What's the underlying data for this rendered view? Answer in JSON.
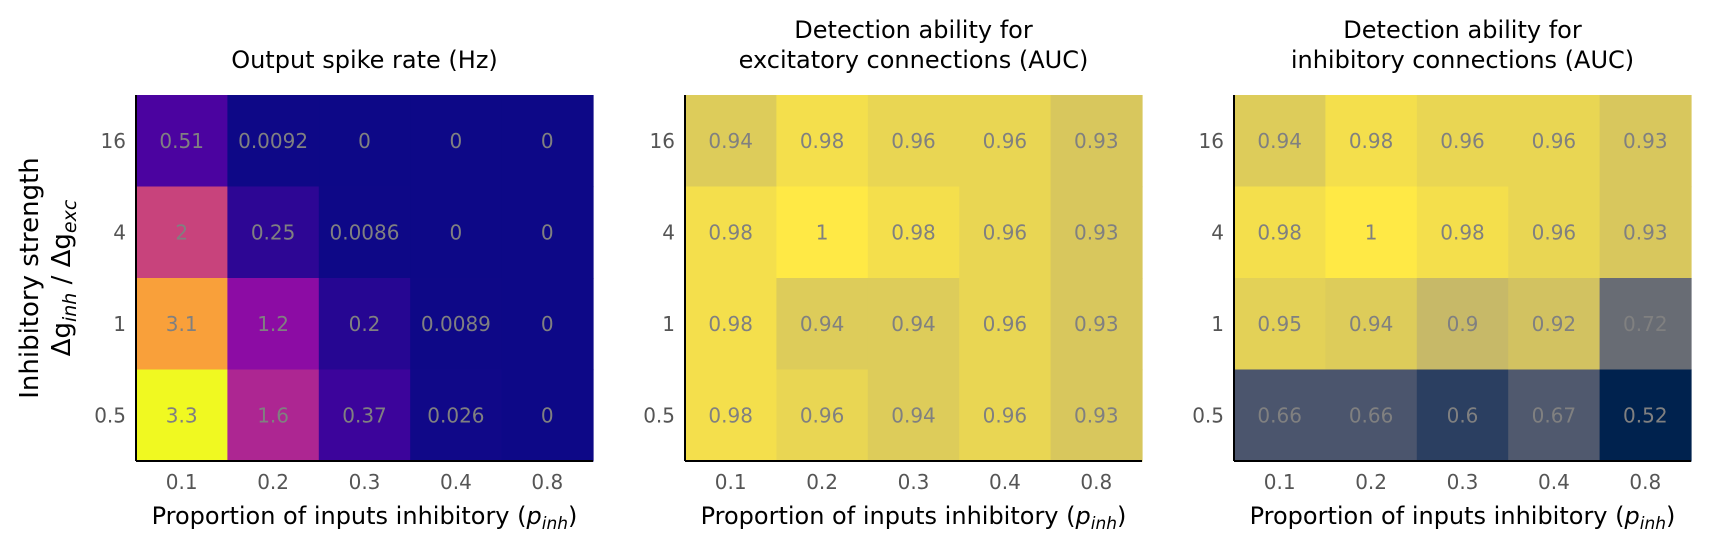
{
  "figure": {
    "ylabel_line1": "Inhibitory strength",
    "ylabel_line2_base": "Δg",
    "ylabel_line2_sub1": "inh",
    "ylabel_line2_mid": " / Δg",
    "ylabel_line2_sub2": "exc",
    "xlabel_main": "Proportion of inputs inhibitory (",
    "xlabel_var": "p",
    "xlabel_sub": "inh",
    "xlabel_close": ")"
  },
  "chart_data": [
    {
      "type": "heatmap",
      "title_lines": [
        "Output spike rate (Hz)"
      ],
      "x_categories": [
        "0.1",
        "0.2",
        "0.3",
        "0.4",
        "0.8"
      ],
      "y_categories": [
        "16",
        "4",
        "1",
        "0.5"
      ],
      "colormap": "plasma",
      "vmin": 0,
      "vmax": 3.3,
      "values": [
        [
          0.51,
          0.0092,
          0,
          0,
          0
        ],
        [
          2,
          0.25,
          0.0086,
          0,
          0
        ],
        [
          3.1,
          1.2,
          0.2,
          0.0089,
          0
        ],
        [
          3.3,
          1.6,
          0.37,
          0.026,
          0
        ]
      ],
      "labels": [
        [
          "0.51",
          "0.0092",
          "0",
          "0",
          "0"
        ],
        [
          "2",
          "0.25",
          "0.0086",
          "0",
          "0"
        ],
        [
          "3.1",
          "1.2",
          "0.2",
          "0.0089",
          "0"
        ],
        [
          "3.3",
          "1.6",
          "0.37",
          "0.026",
          "0"
        ]
      ]
    },
    {
      "type": "heatmap",
      "title_lines": [
        "Detection ability for",
        "excitatory connections (AUC)"
      ],
      "x_categories": [
        "0.1",
        "0.2",
        "0.3",
        "0.4",
        "0.8"
      ],
      "y_categories": [
        "16",
        "4",
        "1",
        "0.5"
      ],
      "colormap": "cividis",
      "vmin": 0.52,
      "vmax": 1,
      "values": [
        [
          0.94,
          0.98,
          0.96,
          0.96,
          0.93
        ],
        [
          0.98,
          1,
          0.98,
          0.96,
          0.93
        ],
        [
          0.98,
          0.94,
          0.94,
          0.96,
          0.93
        ],
        [
          0.98,
          0.96,
          0.94,
          0.96,
          0.93
        ]
      ],
      "labels": [
        [
          "0.94",
          "0.98",
          "0.96",
          "0.96",
          "0.93"
        ],
        [
          "0.98",
          "1",
          "0.98",
          "0.96",
          "0.93"
        ],
        [
          "0.98",
          "0.94",
          "0.94",
          "0.96",
          "0.93"
        ],
        [
          "0.98",
          "0.96",
          "0.94",
          "0.96",
          "0.93"
        ]
      ]
    },
    {
      "type": "heatmap",
      "title_lines": [
        "Detection ability for",
        "inhibitory connections (AUC)"
      ],
      "x_categories": [
        "0.1",
        "0.2",
        "0.3",
        "0.4",
        "0.8"
      ],
      "y_categories": [
        "16",
        "4",
        "1",
        "0.5"
      ],
      "colormap": "cividis",
      "vmin": 0.52,
      "vmax": 1,
      "values": [
        [
          0.94,
          0.98,
          0.96,
          0.96,
          0.93
        ],
        [
          0.98,
          1,
          0.98,
          0.96,
          0.93
        ],
        [
          0.95,
          0.94,
          0.9,
          0.92,
          0.72
        ],
        [
          0.66,
          0.66,
          0.6,
          0.67,
          0.52
        ]
      ],
      "labels": [
        [
          "0.94",
          "0.98",
          "0.96",
          "0.96",
          "0.93"
        ],
        [
          "0.98",
          "1",
          "0.98",
          "0.96",
          "0.93"
        ],
        [
          "0.95",
          "0.94",
          "0.9",
          "0.92",
          "0.72"
        ],
        [
          "0.66",
          "0.66",
          "0.6",
          "0.67",
          "0.52"
        ]
      ]
    }
  ]
}
